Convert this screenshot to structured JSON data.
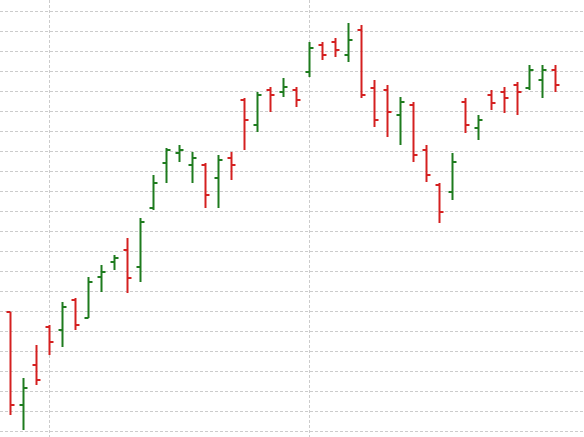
{
  "chart_data": {
    "type": "ohlc",
    "x": [
      0,
      1,
      2,
      3,
      4,
      5,
      6,
      7,
      8,
      9,
      10,
      11,
      12,
      13,
      14,
      15,
      16,
      17,
      18,
      19,
      20,
      21,
      22,
      23,
      24,
      25,
      26,
      27,
      28,
      29,
      30,
      31,
      32,
      33,
      34,
      35,
      36,
      37,
      38,
      39,
      40,
      41,
      42
    ],
    "open": [
      125,
      32,
      72,
      110,
      107,
      137,
      119,
      160,
      175,
      187,
      170,
      229,
      274,
      284,
      272,
      272,
      259,
      279,
      337,
      312,
      347,
      345,
      347,
      365,
      392,
      395,
      382,
      407,
      349,
      347,
      322,
      332,
      287,
      252,
      245,
      335,
      309,
      342,
      345,
      352,
      349,
      357,
      367
    ],
    "high": [
      125,
      59,
      92,
      112,
      135,
      139,
      160,
      172,
      182,
      199,
      219,
      262,
      289,
      292,
      285,
      274,
      282,
      285,
      339,
      345,
      350,
      359,
      350,
      395,
      395,
      399,
      414,
      412,
      357,
      352,
      340,
      335,
      292,
      254,
      284,
      339,
      322,
      347,
      350,
      355,
      372,
      372,
      372
    ],
    "low": [
      22,
      7,
      52,
      82,
      90,
      107,
      119,
      145,
      167,
      144,
      155,
      227,
      254,
      275,
      254,
      229,
      229,
      257,
      287,
      305,
      325,
      340,
      330,
      360,
      377,
      380,
      375,
      339,
      310,
      300,
      292,
      275,
      255,
      214,
      237,
      304,
      297,
      327,
      324,
      322,
      347,
      339,
      345
    ],
    "close": [
      32,
      49,
      57,
      95,
      130,
      112,
      155,
      165,
      179,
      159,
      215,
      254,
      287,
      287,
      279,
      242,
      277,
      272,
      317,
      342,
      342,
      350,
      337,
      389,
      382,
      387,
      397,
      342,
      317,
      325,
      335,
      282,
      262,
      225,
      275,
      312,
      317,
      334,
      339,
      345,
      367,
      367,
      352
    ],
    "xlim": [
      -0.8,
      44.2
    ],
    "ylim": [
      0,
      437
    ],
    "xticks": [
      3,
      23
    ],
    "yticks": [
      6,
      26,
      46,
      66,
      86,
      106,
      126,
      146,
      166,
      186,
      206,
      226,
      246,
      266,
      286,
      306,
      326,
      346,
      366,
      386,
      406,
      426
    ],
    "grid": true,
    "grid_color": "#cccccc",
    "up_color": "#1e7b1e",
    "down_color": "#d42020"
  }
}
